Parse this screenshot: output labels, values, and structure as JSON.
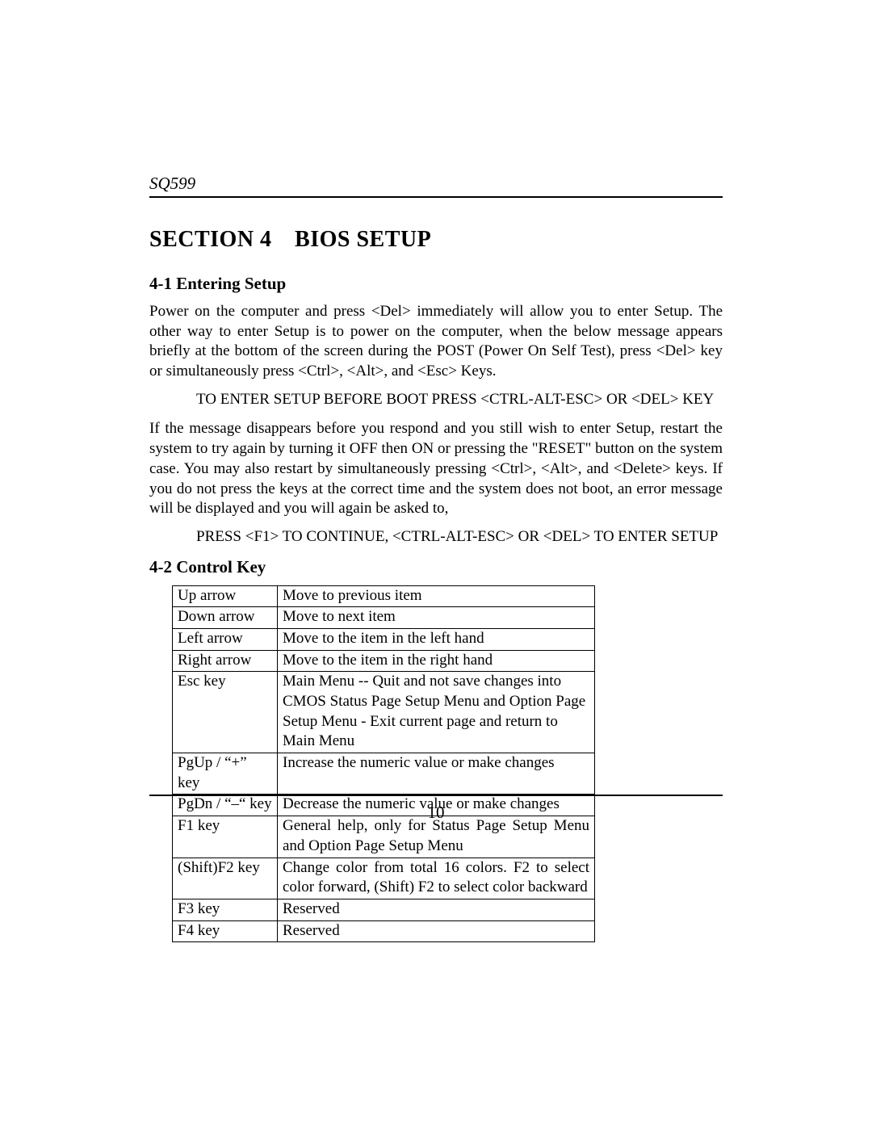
{
  "header": {
    "title": "SQ599"
  },
  "section": {
    "title": "SECTION 4 BIOS SETUP"
  },
  "sub1": {
    "title": "4-1  Entering Setup",
    "para1": "Power on the computer and press <Del> immediately will allow you to enter Setup.  The other way to enter Setup is to power on the computer, when the below message appears briefly at the bottom of the screen during the POST (Power On Self Test), press <Del> key or simultaneously press <Ctrl>, <Alt>, and <Esc> Keys.",
    "msg1": "TO ENTER SETUP BEFORE BOOT PRESS <CTRL-ALT-ESC> OR <DEL> KEY",
    "para2": "If the message disappears before you respond and you still wish to enter Setup, restart the system to try again by turning it OFF then ON or pressing the \"RESET\" button on the system case.  You may also restart by simultaneously pressing <Ctrl>, <Alt>, and <Delete> keys.  If you do not press the keys at the correct time and the system does not boot, an error message will be displayed and you will again be asked to,",
    "msg2": "PRESS <F1> TO CONTINUE, <CTRL-ALT-ESC> OR <DEL> TO ENTER SETUP"
  },
  "sub2": {
    "title": "4-2  Control Key"
  },
  "table": {
    "rows": [
      {
        "key": "Up arrow",
        "desc": "Move to previous item"
      },
      {
        "key": "Down arrow",
        "desc": "Move to next item"
      },
      {
        "key": "Left arrow",
        "desc": "Move to the item in the left hand"
      },
      {
        "key": "Right arrow",
        "desc": "Move to the item in the right hand"
      },
      {
        "key": "Esc key",
        "desc": "Main Menu -- Quit and not save changes into CMOS\nStatus Page Setup Menu and Option Page Setup Menu - Exit current page and return to Main Menu"
      },
      {
        "key": "PgUp / “+” key",
        "desc": "Increase the numeric value or make changes"
      },
      {
        "key": "PgDn / “–“ key",
        "desc": "Decrease the numeric value or make changes"
      },
      {
        "key": "F1 key",
        "desc": "General help, only for Status Page Setup Menu and Option Page Setup Menu"
      },
      {
        "key": "(Shift)F2 key",
        "desc": "Change color from total 16 colors.  F2 to select color forward, (Shift) F2 to select color backward"
      },
      {
        "key": "F3 key",
        "desc": "Reserved"
      },
      {
        "key": "F4 key",
        "desc": "Reserved"
      }
    ]
  },
  "pageNumber": "10"
}
